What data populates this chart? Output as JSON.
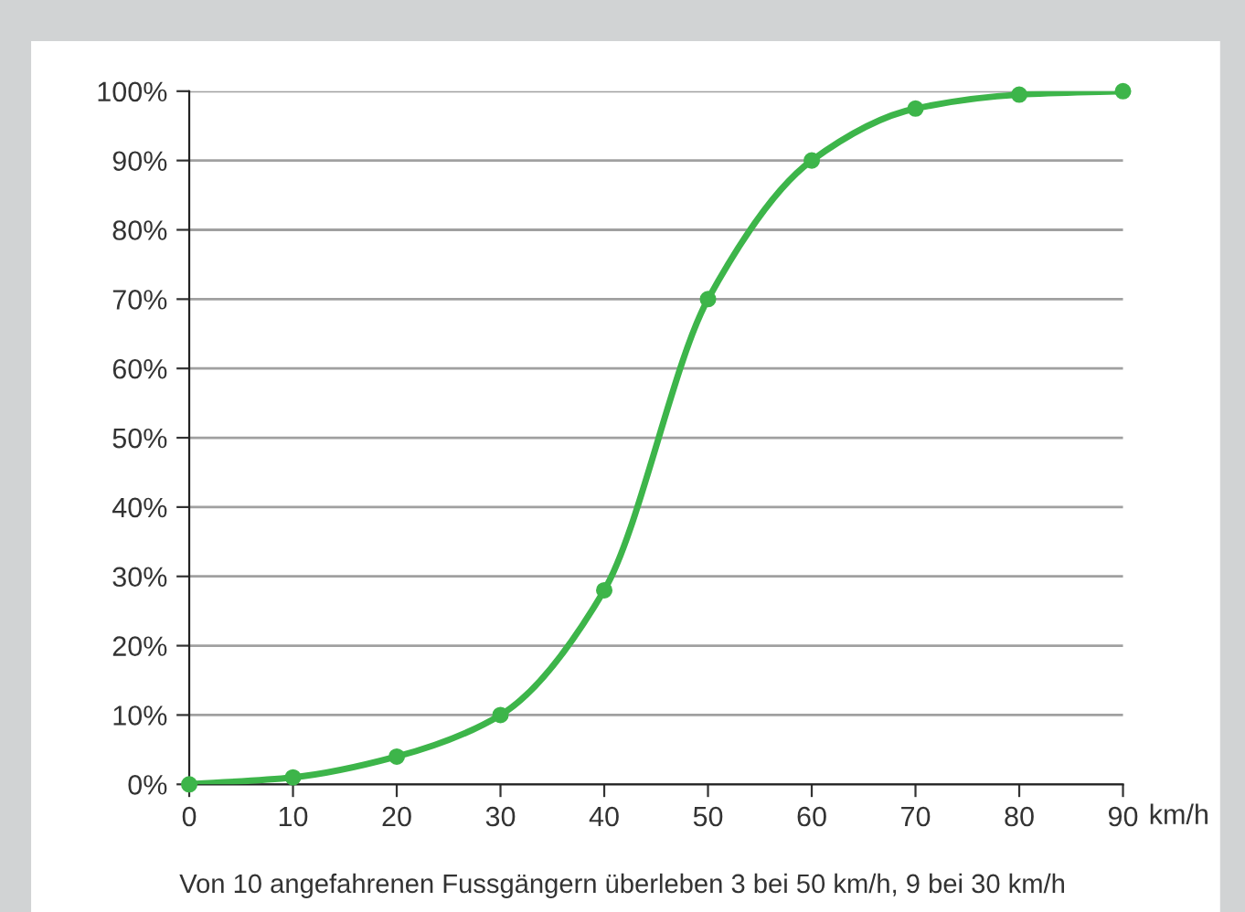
{
  "chart_data": {
    "type": "line",
    "xlabel": "km/h",
    "annotations": [
      "Von 10 angefahrenen Fussgängern überleben 3 bei 50 km/h, 9 bei 30 km/h"
    ],
    "x": [
      0,
      10,
      20,
      30,
      40,
      50,
      60,
      70,
      80,
      90
    ],
    "series": [
      {
        "color": "#3db54a",
        "values": [
          0,
          1,
          4,
          10,
          28,
          70,
          90,
          97.5,
          99.5,
          100
        ]
      }
    ],
    "xlim": [
      0,
      90
    ],
    "xticks": [
      0,
      10,
      20,
      30,
      40,
      50,
      60,
      70,
      80,
      90
    ],
    "ylim": [
      0,
      100
    ],
    "yticks": [
      {
        "value": 0,
        "label": "0%"
      },
      {
        "value": 10,
        "label": "10%"
      },
      {
        "value": 20,
        "label": "20%"
      },
      {
        "value": 30,
        "label": "30%"
      },
      {
        "value": 40,
        "label": "40%"
      },
      {
        "value": 50,
        "label": "50%"
      },
      {
        "value": 60,
        "label": "60%"
      },
      {
        "value": 70,
        "label": "70%"
      },
      {
        "value": 80,
        "label": "80%"
      },
      {
        "value": 90,
        "label": "90%"
      },
      {
        "value": 100,
        "label": "100%"
      }
    ],
    "grid": "y",
    "marker": "circle",
    "line_style": "solid",
    "legend": false
  }
}
